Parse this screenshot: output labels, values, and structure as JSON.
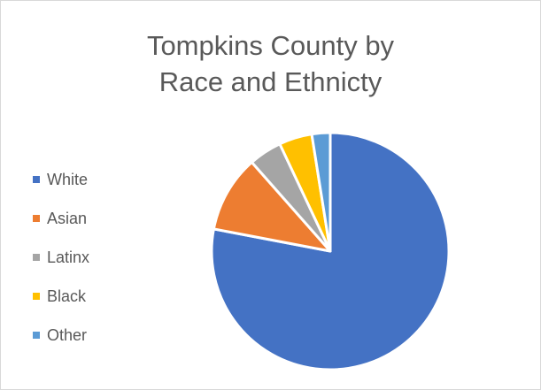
{
  "chart_data": {
    "type": "pie",
    "title_lines": [
      "Tompkins County by",
      "Race and Ethnicty"
    ],
    "categories": [
      "White",
      "Asian",
      "Latinx",
      "Black",
      "Other"
    ],
    "values": [
      78,
      10.5,
      4.5,
      4.5,
      2.5
    ],
    "colors": [
      "#4472c4",
      "#ed7d31",
      "#a5a5a5",
      "#ffc000",
      "#5b9bd5"
    ],
    "legend_position": "left"
  }
}
